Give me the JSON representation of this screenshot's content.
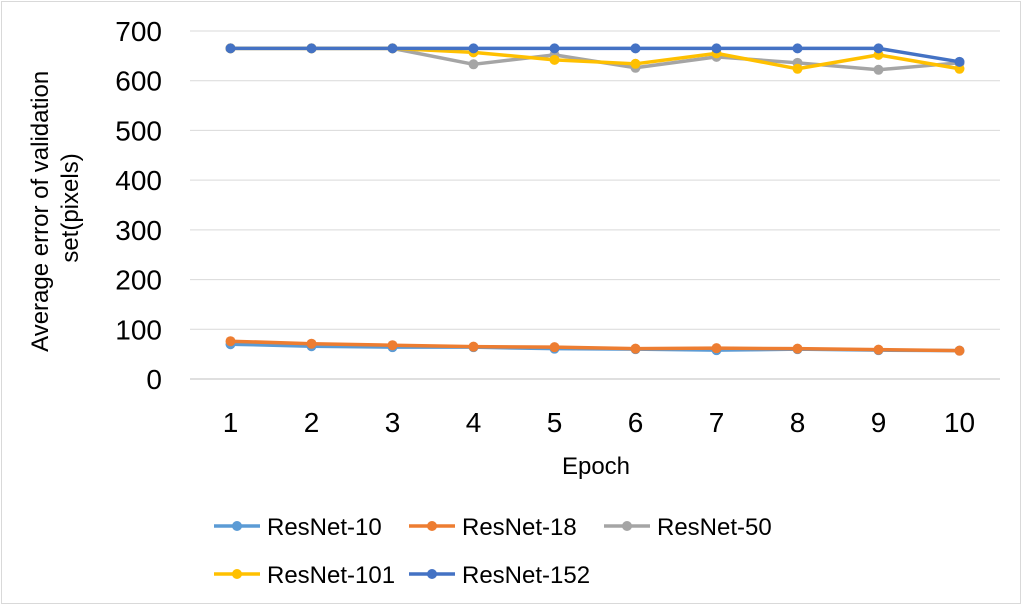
{
  "chart_data": {
    "type": "line",
    "title": "",
    "xlabel": "Epoch",
    "ylabel": "Average error of validation set(pixels)",
    "ylabel_lines": [
      "Average error of validation",
      "set(pixels)"
    ],
    "categories": [
      "1",
      "2",
      "3",
      "4",
      "5",
      "6",
      "7",
      "8",
      "9",
      "10"
    ],
    "ylim": [
      0,
      700
    ],
    "yticks": [
      0,
      100,
      200,
      300,
      400,
      500,
      600,
      700
    ],
    "grid": true,
    "legend_position": "bottom",
    "series": [
      {
        "name": "ResNet-10",
        "color": "#5B9BD5",
        "values": [
          70,
          66,
          64,
          64,
          61,
          60,
          58,
          60,
          58,
          57
        ]
      },
      {
        "name": "ResNet-18",
        "color": "#ED7D31",
        "values": [
          76,
          71,
          68,
          65,
          64,
          61,
          62,
          61,
          59,
          57
        ]
      },
      {
        "name": "ResNet-50",
        "color": "#A5A5A5",
        "values": [
          665,
          665,
          665,
          633,
          652,
          626,
          648,
          636,
          622,
          636
        ]
      },
      {
        "name": "ResNet-101",
        "color": "#FFC000",
        "values": [
          665,
          665,
          665,
          657,
          642,
          634,
          655,
          624,
          652,
          624
        ]
      },
      {
        "name": "ResNet-152",
        "color": "#4472C4",
        "values": [
          665,
          665,
          665,
          665,
          665,
          665,
          665,
          665,
          665,
          638
        ]
      }
    ]
  }
}
